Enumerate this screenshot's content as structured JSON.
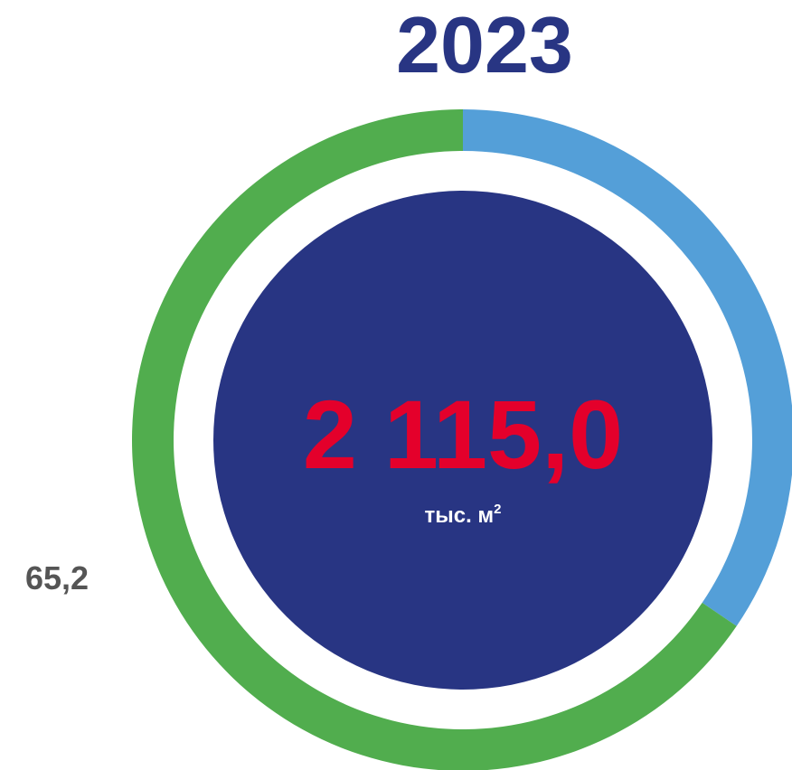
{
  "chart_data": {
    "type": "pie",
    "title": "2023",
    "center_value": "2 115,0",
    "center_unit": "тыс. м",
    "center_unit_sup": "2",
    "slices": [
      {
        "label": "",
        "share": 0.345,
        "color": "#549fd8"
      },
      {
        "label": "65,2",
        "share": 0.655,
        "color": "#51ad4e"
      }
    ]
  },
  "colors": {
    "title": "#283583",
    "center_disc": "#283583",
    "center_value": "#e4002b",
    "center_unit": "#ffffff",
    "slice_label": "#555555"
  }
}
